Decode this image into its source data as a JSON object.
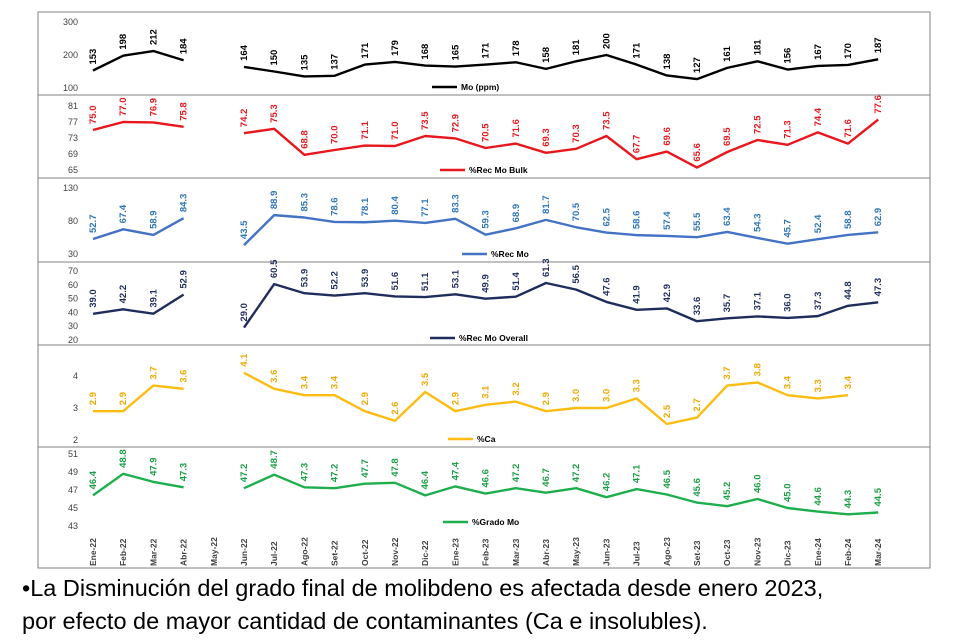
{
  "chart_data": {
    "type": "line",
    "categories": [
      "Ene-22",
      "Feb-22",
      "Mar-22",
      "Abr-22",
      "May-22",
      "Jun-22",
      "Jul-22",
      "Ago-22",
      "Set-22",
      "Oct-22",
      "Nov-22",
      "Dic-22",
      "Ene-23",
      "Feb-23",
      "Mar-23",
      "Abr-23",
      "May-23",
      "Jun-23",
      "Jul-23",
      "Ago-23",
      "Set-23",
      "Oct-23",
      "Nov-23",
      "Dic-23",
      "Ene-24",
      "Feb-24",
      "Mar-24"
    ],
    "panels": [
      {
        "name": "Mo (ppm)",
        "color": "#000000",
        "yticks": [
          "300",
          "200",
          "100"
        ],
        "ylim": [
          100,
          300
        ],
        "values": [
          153,
          198,
          212,
          184,
          null,
          164,
          150,
          135,
          137,
          171,
          179,
          168,
          165,
          171,
          178,
          158,
          181,
          200,
          171,
          138,
          127,
          161,
          181,
          156,
          167,
          170,
          187
        ],
        "labels": [
          "153",
          "198",
          "212",
          "184",
          "",
          "164",
          "150",
          "135",
          "137",
          "171",
          "179",
          "168",
          "165",
          "171",
          "178",
          "158",
          "181",
          "200",
          "171",
          "138",
          "127",
          "161",
          "181",
          "156",
          "167",
          "170",
          "187"
        ]
      },
      {
        "name": "%Rec Mo Bulk",
        "color": "#e8161d",
        "yticks": [
          "81",
          "77",
          "73",
          "69",
          "65"
        ],
        "ylim": [
          65,
          81
        ],
        "values": [
          75.0,
          77.0,
          76.9,
          75.8,
          null,
          74.2,
          75.3,
          68.8,
          70.0,
          71.1,
          71.0,
          73.5,
          72.9,
          70.5,
          71.6,
          69.3,
          70.3,
          73.5,
          67.7,
          69.6,
          65.6,
          69.5,
          72.5,
          71.3,
          74.4,
          71.6,
          77.6
        ],
        "labels": [
          "75.0",
          "77.0",
          "76.9",
          "75.8",
          "",
          "74.2",
          "75.3",
          "68.8",
          "70.0",
          "71.1",
          "71.0",
          "73.5",
          "72.9",
          "70.5",
          "71.6",
          "69.3",
          "70.3",
          "73.5",
          "67.7",
          "69.6",
          "65.6",
          "69.5",
          "72.5",
          "71.3",
          "74.4",
          "71.6",
          "77.6"
        ]
      },
      {
        "name": "%Rec Mo",
        "color": "#4472c4",
        "label_color": "#2e75b6",
        "yticks": [
          "130",
          "80",
          "30"
        ],
        "ylim": [
          30,
          130
        ],
        "values": [
          52.7,
          67.4,
          58.9,
          84.3,
          null,
          43.5,
          88.9,
          85.3,
          78.6,
          78.1,
          80.4,
          77.1,
          83.3,
          59.3,
          68.9,
          81.7,
          70.5,
          62.5,
          58.6,
          57.4,
          55.5,
          63.4,
          54.3,
          45.7,
          52.4,
          58.8,
          62.9
        ],
        "labels": [
          "52.7",
          "67.4",
          "58.9",
          "84.3",
          "",
          "43.5",
          "88.9",
          "85.3",
          "78.6",
          "78.1",
          "80.4",
          "77.1",
          "83.3",
          "59.3",
          "68.9",
          "81.7",
          "70.5",
          "62.5",
          "58.6",
          "57.4",
          "55.5",
          "63.4",
          "54.3",
          "45.7",
          "52.4",
          "58.8",
          "62.9"
        ]
      },
      {
        "name": "%Rec Mo Overall",
        "color": "#1f2d5c",
        "yticks": [
          "70",
          "60",
          "50",
          "40",
          "30",
          "20"
        ],
        "ylim": [
          20,
          70
        ],
        "values": [
          39.0,
          42.2,
          39.1,
          52.9,
          null,
          29.0,
          60.5,
          53.9,
          52.2,
          53.9,
          51.6,
          51.1,
          53.1,
          49.9,
          51.4,
          61.3,
          56.5,
          47.6,
          41.9,
          42.9,
          33.6,
          35.7,
          37.1,
          36.0,
          37.3,
          44.8,
          47.3
        ],
        "labels": [
          "39.0",
          "42.2",
          "39.1",
          "52.9",
          "",
          "29.0",
          "60.5",
          "53.9",
          "52.2",
          "53.9",
          "51.6",
          "51.1",
          "53.1",
          "49.9",
          "51.4",
          "61.3",
          "56.5",
          "47.6",
          "41.9",
          "42.9",
          "33.6",
          "35.7",
          "37.1",
          "36.0",
          "37.3",
          "44.8",
          "47.3"
        ]
      },
      {
        "name": "%Ca",
        "color": "#fbbd14",
        "label_color": "#f0a800",
        "yticks": [
          "4",
          "3",
          "2"
        ],
        "ylim": [
          2,
          4.5
        ],
        "values": [
          2.9,
          2.9,
          3.7,
          3.6,
          null,
          4.1,
          3.6,
          3.4,
          3.4,
          2.9,
          2.6,
          3.5,
          2.9,
          3.1,
          3.2,
          2.9,
          3.0,
          3.0,
          3.3,
          2.5,
          2.7,
          3.7,
          3.8,
          3.4,
          3.3,
          3.4,
          null
        ],
        "labels": [
          "2.9",
          "2.9",
          "3.7",
          "3.6",
          "",
          "4.1",
          "3.6",
          "3.4",
          "3.4",
          "2.9",
          "2.6",
          "3.5",
          "2.9",
          "3.1",
          "3.2",
          "2.9",
          "3.0",
          "3.0",
          "3.3",
          "2.5",
          "2.7",
          "3.7",
          "3.8",
          "3.4",
          "3.3",
          "3.4",
          ""
        ]
      },
      {
        "name": "%Grado Mo",
        "color": "#1fae4e",
        "label_color": "#1a9e45",
        "yticks": [
          "51",
          "49",
          "47",
          "45",
          "43"
        ],
        "ylim": [
          43,
          51
        ],
        "values": [
          46.4,
          48.8,
          47.9,
          47.3,
          null,
          47.2,
          48.7,
          47.3,
          47.2,
          47.7,
          47.8,
          46.4,
          47.4,
          46.6,
          47.2,
          46.7,
          47.2,
          46.2,
          47.1,
          46.5,
          45.6,
          45.2,
          46.0,
          45.0,
          44.6,
          44.3,
          44.5
        ],
        "labels": [
          "46.4",
          "48.8",
          "47.9",
          "47.3",
          "",
          "47.2",
          "48.7",
          "47.3",
          "47.2",
          "47.7",
          "47.8",
          "46.4",
          "47.4",
          "46.6",
          "47.2",
          "46.7",
          "47.2",
          "46.2",
          "47.1",
          "46.5",
          "45.6",
          "45.2",
          "46.0",
          "45.0",
          "44.6",
          "44.3",
          "44.5"
        ]
      }
    ]
  },
  "caption": {
    "line1": "•La Disminución del grado final de molibdeno es afectada desde enero 2023,",
    "line2": "por efecto de mayor cantidad de contaminantes (Ca e insolubles)."
  }
}
